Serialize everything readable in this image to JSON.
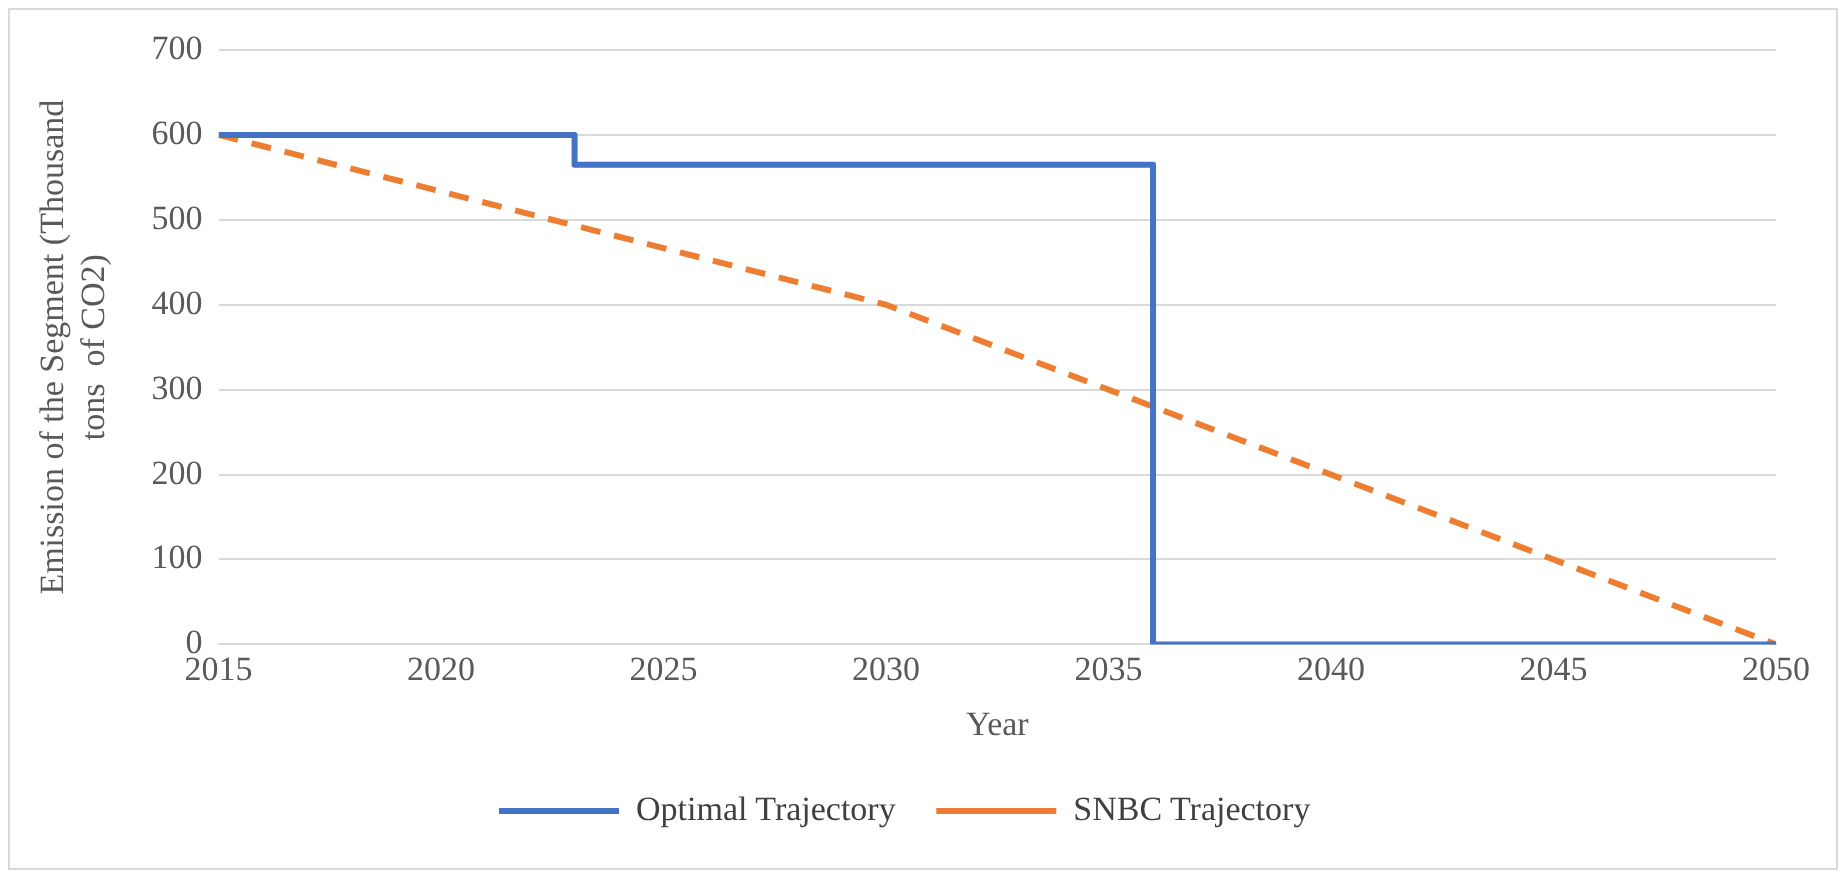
{
  "chart_data": {
    "type": "line",
    "xlabel": "Year",
    "ylabel": "Emission of the Segment (Thousand tons  of CO2)",
    "xlim": [
      2015,
      2050
    ],
    "xticks": [
      2015,
      2020,
      2025,
      2030,
      2035,
      2040,
      2045,
      2050
    ],
    "ylim": [
      0,
      700
    ],
    "yticks": [
      0,
      100,
      200,
      300,
      400,
      500,
      600,
      700
    ],
    "grid": "y",
    "legend": "bottom",
    "marker": "none",
    "series": [
      {
        "name": "Optimal Trajectory",
        "type": "step",
        "color": "#4472c4",
        "line_style": "solid",
        "x": [
          2015,
          2023,
          2036,
          2050
        ],
        "values": [
          600,
          565,
          0,
          0
        ]
      },
      {
        "name": "SNBC Trajectory",
        "type": "line",
        "color": "#ed7d31",
        "line_style": "dashed",
        "x": [
          2015,
          2030,
          2050
        ],
        "values": [
          600,
          400,
          0
        ]
      }
    ]
  }
}
